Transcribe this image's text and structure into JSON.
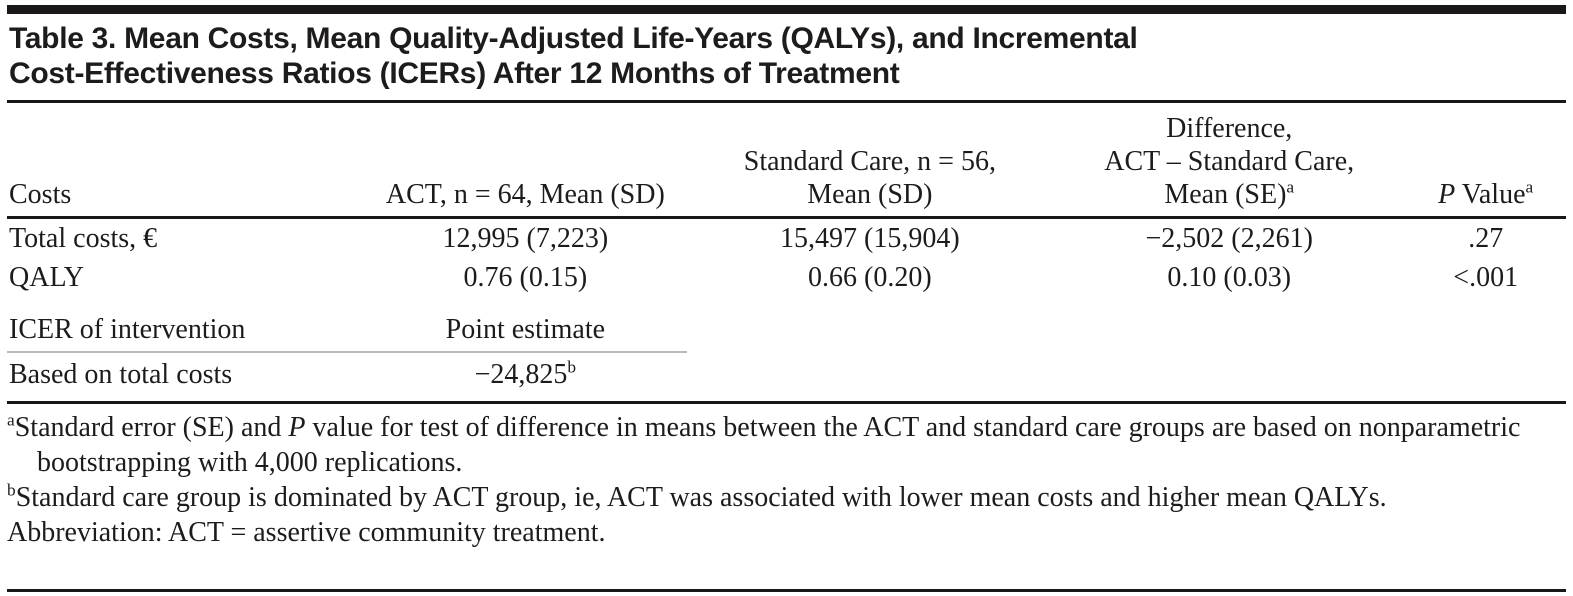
{
  "title": {
    "line1": "Table 3. Mean Costs, Mean Quality-Adjusted Life-Years (QALYs), and Incremental",
    "line2": "Cost-Effectiveness Ratios (ICERs) After 12 Months of Treatment"
  },
  "table": {
    "columns": {
      "costs": "Costs",
      "act": "ACT, n = 64, Mean (SD)",
      "sc_line1": "Standard Care, n = 56,",
      "sc_line2": "Mean (SD)",
      "diff_line1": "Difference,",
      "diff_line2": "ACT – Standard Care,",
      "diff_line3": "Mean (SE)",
      "diff_sup": "a",
      "p_italic": "P",
      "p_rest": " Value",
      "p_sup": "a"
    },
    "rows": [
      {
        "label": "Total costs, €",
        "act": "12,995 (7,223)",
        "sc": "15,497 (15,904)",
        "diff": "−2,502 (2,261)",
        "p": ".27"
      },
      {
        "label": "QALY",
        "act": "0.76 (0.15)",
        "sc": "0.66 (0.20)",
        "diff": "0.10 (0.03)",
        "p": "<.001"
      }
    ],
    "icer_section": {
      "label": "ICER of intervention",
      "subheader": "Point estimate"
    },
    "icer_row": {
      "label": "Based on total costs",
      "value": "−24,825",
      "sup": "b"
    }
  },
  "footnotes": {
    "a": {
      "sup": "a",
      "pre": "Standard error (SE) and ",
      "italic": "P",
      "post": " value for test of difference in means between the ACT and standard care groups are based on nonparametric bootstrapping with 4,000 replications."
    },
    "b": {
      "sup": "b",
      "text": "Standard care group is dominated by ACT group, ie, ACT was associated with lower mean costs and higher mean QALYs."
    },
    "abbreviation": "Abbreviation: ACT = assertive community treatment."
  },
  "colors": {
    "text": "#1e1b1c",
    "rule": "#1a1718",
    "light_rule": "#b9b9b9",
    "background": "#ffffff"
  },
  "chart_data": {
    "type": "table",
    "title": "Table 3. Mean Costs, Mean Quality-Adjusted Life-Years (QALYs), and Incremental Cost-Effectiveness Ratios (ICERs) After 12 Months of Treatment",
    "columns": [
      "Costs",
      "ACT, n = 64, Mean (SD)",
      "Standard Care, n = 56, Mean (SD)",
      "Difference, ACT – Standard Care, Mean (SE)a",
      "P Valuea"
    ],
    "rows": [
      [
        "Total costs, €",
        "12,995 (7,223)",
        "15,497 (15,904)",
        "−2,502 (2,261)",
        ".27"
      ],
      [
        "QALY",
        "0.76 (0.15)",
        "0.66 (0.20)",
        "0.10 (0.03)",
        "<.001"
      ],
      [
        "ICER of intervention",
        "Point estimate",
        "",
        "",
        ""
      ],
      [
        "Based on total costs",
        "−24,825b",
        "",
        "",
        ""
      ]
    ],
    "footnotes": [
      "aStandard error (SE) and P value for test of difference in means between the ACT and standard care groups are based on nonparametric bootstrapping with 4,000 replications.",
      "bStandard care group is dominated by ACT group, ie, ACT was associated with lower mean costs and higher mean QALYs.",
      "Abbreviation: ACT = assertive community treatment."
    ]
  }
}
